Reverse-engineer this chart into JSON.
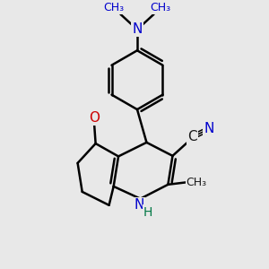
{
  "bg_color": "#e8e8e8",
  "bond_color": "#000000",
  "bond_lw": 1.8,
  "thin_lw": 1.2,
  "N_color": "#0000cc",
  "O_color": "#cc0000",
  "C_color": "#1a1a1a",
  "H_color": "#007744",
  "figsize": [
    3.0,
    3.0
  ],
  "dpi": 100,
  "xlim": [
    -0.5,
    9.5
  ],
  "ylim": [
    -0.5,
    9.5
  ]
}
